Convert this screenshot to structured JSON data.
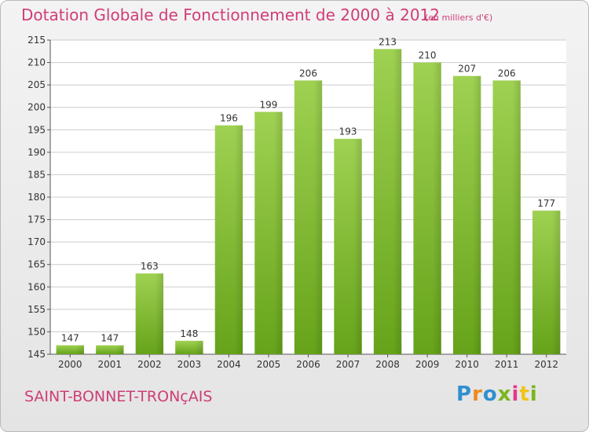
{
  "title": "Dotation Globale de Fonctionnement de 2000 à 2012",
  "subtitle": "(en milliers d'€)",
  "commune": "SAINT-BONNET-TRONçAIS",
  "logo": {
    "letters": [
      "P",
      "r",
      "o",
      "x",
      "i",
      "t",
      "i"
    ],
    "colors": [
      "#2f8fd0",
      "#f08a1c",
      "#2f8fd0",
      "#7ab51d",
      "#e23a8b",
      "#f0c419",
      "#7ab51d"
    ]
  },
  "colors": {
    "bar_light": "#9fd152",
    "bar_dark": "#66a31a",
    "title": "#cf3d77",
    "axis": "#555555",
    "grid": "#cccccc"
  },
  "chart_data": {
    "type": "bar",
    "title": "Dotation Globale de Fonctionnement de 2000 à 2012",
    "subtitle": "(en milliers d'€)",
    "categories": [
      "2000",
      "2001",
      "2002",
      "2003",
      "2004",
      "2005",
      "2006",
      "2007",
      "2008",
      "2009",
      "2010",
      "2011",
      "2012"
    ],
    "values": [
      147,
      147,
      163,
      148,
      196,
      199,
      206,
      193,
      213,
      210,
      207,
      206,
      177
    ],
    "ylim": [
      145,
      215
    ],
    "yticks": [
      145,
      150,
      155,
      160,
      165,
      170,
      175,
      180,
      185,
      190,
      195,
      200,
      205,
      210,
      215
    ],
    "grid": true,
    "legend": "none"
  }
}
